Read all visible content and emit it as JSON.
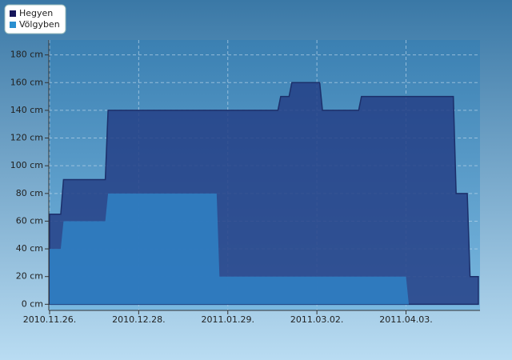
{
  "chart_data": {
    "type": "area",
    "series": [
      {
        "name": "Hegyen",
        "color": "#243f86",
        "legend_color": "#16165a",
        "x": [
          "2010.11.26",
          "2010.11.30",
          "2010.12.01",
          "2010.12.16",
          "2010.12.17",
          "2011.02.16",
          "2011.02.17",
          "2011.02.20",
          "2011.02.21",
          "2011.03.03",
          "2011.03.04",
          "2011.03.17",
          "2011.03.18",
          "2011.04.20",
          "2011.04.21",
          "2011.04.25",
          "2011.04.26",
          "2011.04.29"
        ],
        "values": [
          65,
          65,
          90,
          90,
          140,
          140,
          150,
          150,
          160,
          160,
          140,
          140,
          150,
          150,
          80,
          80,
          20,
          20
        ]
      },
      {
        "name": "Völgyben",
        "color": "#2f7cc0",
        "legend_color": "#2a8fd0",
        "x": [
          "2010.11.26",
          "2010.11.30",
          "2010.12.01",
          "2010.12.16",
          "2010.12.17",
          "2011.01.25",
          "2011.01.26",
          "2011.04.03",
          "2011.04.04"
        ],
        "values": [
          40,
          40,
          60,
          60,
          80,
          80,
          20,
          20,
          0
        ]
      }
    ],
    "xlim": [
      "2010.11.26",
      "2011.04.29"
    ],
    "xticks": [
      {
        "value": "2010.11.26",
        "label": "2010.11.26."
      },
      {
        "value": "2010.12.28",
        "label": "2010.12.28."
      },
      {
        "value": "2011.01.29",
        "label": "2011.01.29."
      },
      {
        "value": "2011.03.02",
        "label": "2011.03.02."
      },
      {
        "value": "2011.04.03",
        "label": "2011.04.03."
      }
    ],
    "ylim": [
      -5,
      185
    ],
    "yticks": [
      {
        "value": 0,
        "label": "0 cm"
      },
      {
        "value": 20,
        "label": "20 cm"
      },
      {
        "value": 40,
        "label": "40 cm"
      },
      {
        "value": 60,
        "label": "60 cm"
      },
      {
        "value": 80,
        "label": "80 cm"
      },
      {
        "value": 100,
        "label": "100 cm"
      },
      {
        "value": 120,
        "label": "120 cm"
      },
      {
        "value": 140,
        "label": "140 cm"
      },
      {
        "value": 160,
        "label": "160 cm"
      },
      {
        "value": 180,
        "label": "180 cm"
      }
    ],
    "grid": true,
    "legend": "top-left"
  }
}
